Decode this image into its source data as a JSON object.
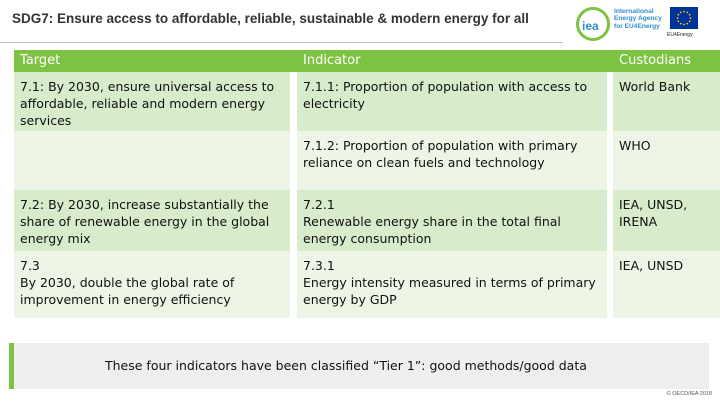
{
  "header": {
    "title": "SDG7: Ensure access to affordable, reliable, sustainable & modern energy for all"
  },
  "logo": {
    "iea_letters": "iea",
    "iea_line1": "International",
    "iea_line2": "Energy Agency",
    "iea_line3": "for EU4Energy",
    "eu_caption": "EU4Energy"
  },
  "table": {
    "columns": [
      "Target",
      "Indicator",
      "Custodians"
    ],
    "rows": [
      {
        "target": "7.1: By 2030, ensure universal access to affordable, reliable and modern energy services",
        "indicator": "7.1.1: Proportion of population with access to electricity",
        "custodians": "World Bank"
      },
      {
        "target": "",
        "indicator": "7.1.2: Proportion of population with primary reliance on clean fuels and technology",
        "custodians": "WHO"
      },
      {
        "target": "7.2: By 2030, increase substantially the share of renewable energy in the global energy mix",
        "indicator_code": "7.2.1",
        "indicator": "Renewable energy share in the total final energy consumption",
        "custodians": "IEA, UNSD, IRENA"
      },
      {
        "target_code": "7.3",
        "target": "By 2030, double the global rate of improvement in energy efficiency",
        "indicator_code": "7.3.1",
        "indicator": "Energy intensity measured in terms of primary energy by GDP",
        "custodians": "IEA, UNSD"
      }
    ]
  },
  "footer": {
    "note": "These four indicators have been classified “Tier 1”: good methods/good data",
    "copyright": "© OECD/IEA 2018"
  },
  "colors": {
    "accent_green": "#7dc242",
    "row_dark": "#d8ebca",
    "row_light": "#edf5e7",
    "iea_blue": "#2f8ecf",
    "eu_blue": "#003399"
  }
}
